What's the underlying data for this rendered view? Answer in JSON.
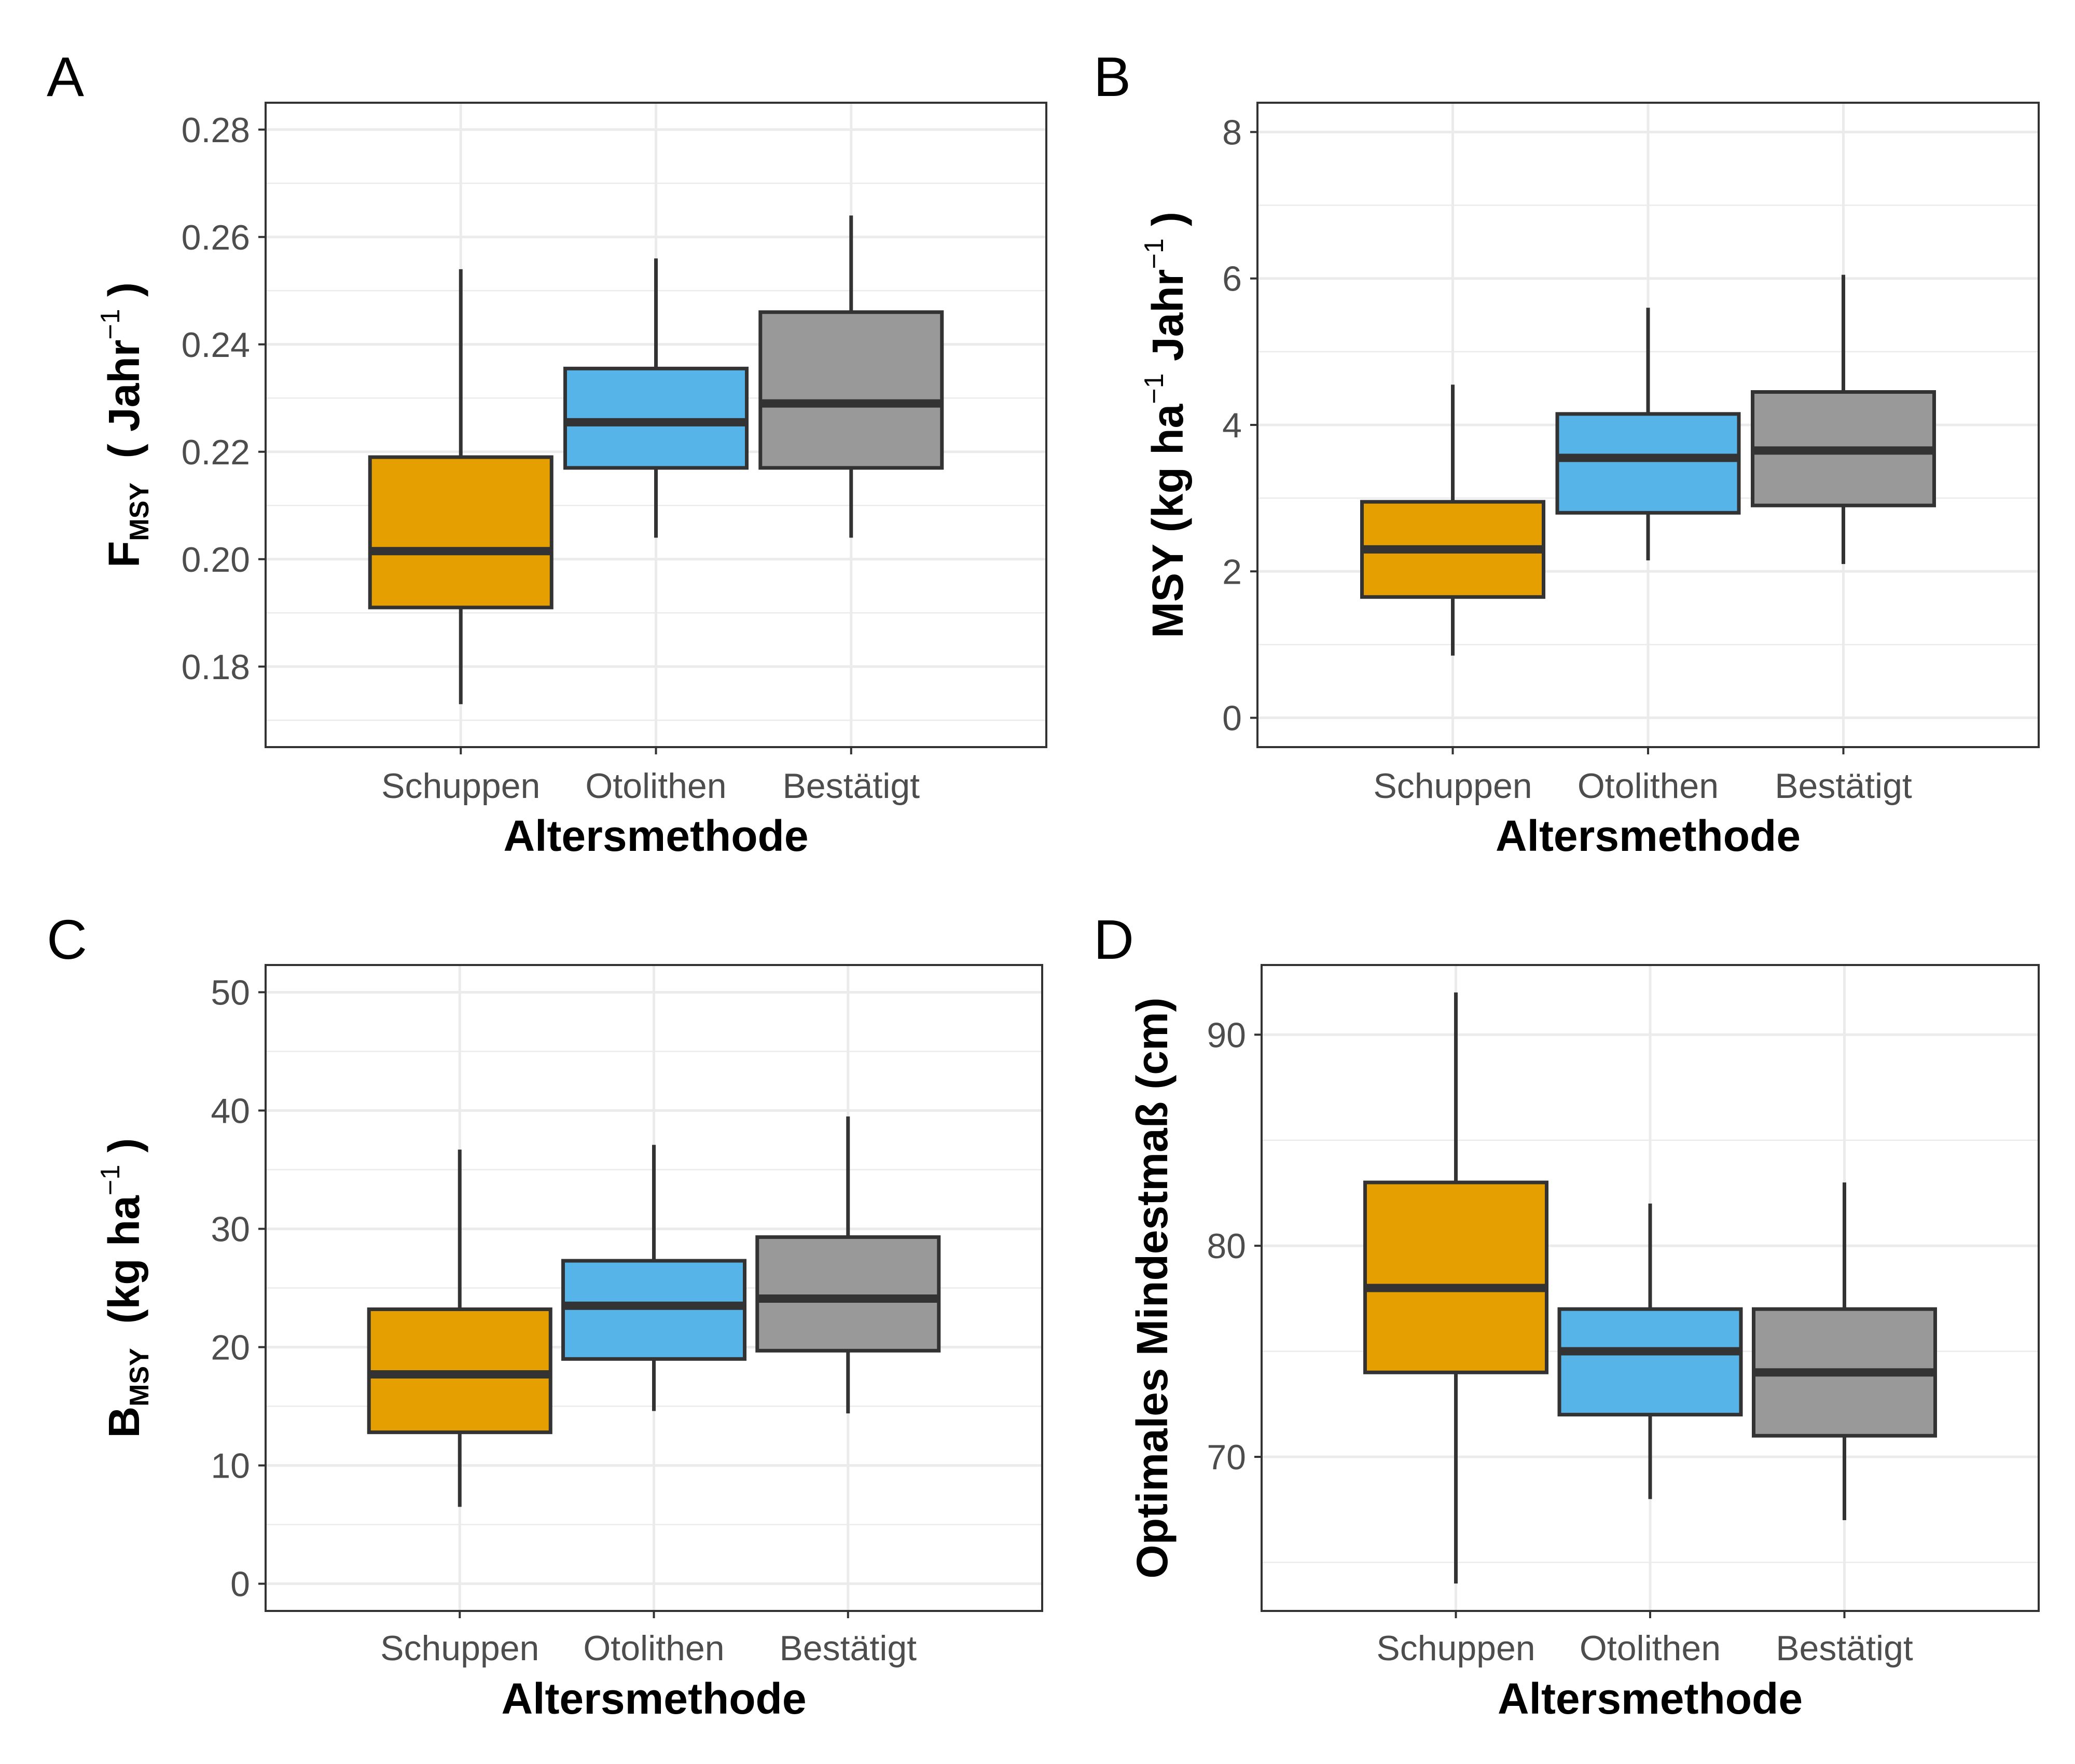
{
  "colors": {
    "Schuppen": "#E69F00",
    "Otolithen": "#56B4E9",
    "Bestätigt": "#999999"
  },
  "chart_data": [
    {
      "type": "box",
      "panel": "A",
      "categories": [
        "Schuppen",
        "Otolithen",
        "Bestätigt"
      ],
      "xlabel": "Altersmethode",
      "ylabel": {
        "main": "F",
        "sub": "MSY",
        "unit_open": "( Jahr",
        "sup": "−1",
        "unit_close": ")"
      },
      "ylim": [
        0.165,
        0.285
      ],
      "yticks": [
        0.18,
        0.2,
        0.22,
        0.24,
        0.26,
        0.28
      ],
      "ytick_labels": [
        "0.18",
        "0.20",
        "0.22",
        "0.24",
        "0.26",
        "0.28"
      ],
      "grid": true,
      "boxes": [
        {
          "category": "Schuppen",
          "whisker_low": 0.173,
          "q1": 0.191,
          "median": 0.2015,
          "q3": 0.219,
          "whisker_high": 0.254
        },
        {
          "category": "Otolithen",
          "whisker_low": 0.204,
          "q1": 0.217,
          "median": 0.2255,
          "q3": 0.2355,
          "whisker_high": 0.256
        },
        {
          "category": "Bestätigt",
          "whisker_low": 0.204,
          "q1": 0.217,
          "median": 0.229,
          "q3": 0.246,
          "whisker_high": 0.264
        }
      ]
    },
    {
      "type": "box",
      "panel": "B",
      "categories": [
        "Schuppen",
        "Otolithen",
        "Bestätigt"
      ],
      "xlabel": "Altersmethode",
      "ylabel": {
        "main": "MSY (kg  ha",
        "sup1": "−1",
        "mid": " Jahr",
        "sup2": "−1",
        "close": ")"
      },
      "ylim": [
        -0.4,
        8.4
      ],
      "yticks": [
        0,
        2,
        4,
        6,
        8
      ],
      "ytick_labels": [
        "0",
        "2",
        "4",
        "6",
        "8"
      ],
      "grid": true,
      "boxes": [
        {
          "category": "Schuppen",
          "whisker_low": 0.85,
          "q1": 1.65,
          "median": 2.3,
          "q3": 2.95,
          "whisker_high": 4.55
        },
        {
          "category": "Otolithen",
          "whisker_low": 2.15,
          "q1": 2.8,
          "median": 3.55,
          "q3": 4.15,
          "whisker_high": 5.6
        },
        {
          "category": "Bestätigt",
          "whisker_low": 2.1,
          "q1": 2.9,
          "median": 3.65,
          "q3": 4.45,
          "whisker_high": 6.05
        }
      ]
    },
    {
      "type": "box",
      "panel": "C",
      "categories": [
        "Schuppen",
        "Otolithen",
        "Bestätigt"
      ],
      "xlabel": "Altersmethode",
      "ylabel": {
        "main": "B",
        "sub": "MSY",
        "unit_open": "(kg ha",
        "sup": "−1",
        "unit_close": ")"
      },
      "ylim": [
        -2.3,
        52.3
      ],
      "yticks": [
        0,
        10,
        20,
        30,
        40,
        50
      ],
      "ytick_labels": [
        "0",
        "10",
        "20",
        "30",
        "40",
        "50"
      ],
      "grid": true,
      "boxes": [
        {
          "category": "Schuppen",
          "whisker_low": 6.5,
          "q1": 12.8,
          "median": 17.7,
          "q3": 23.2,
          "whisker_high": 36.7
        },
        {
          "category": "Otolithen",
          "whisker_low": 14.6,
          "q1": 19.0,
          "median": 23.5,
          "q3": 27.3,
          "whisker_high": 37.1
        },
        {
          "category": "Bestätigt",
          "whisker_low": 14.4,
          "q1": 19.7,
          "median": 24.1,
          "q3": 29.3,
          "whisker_high": 39.5
        }
      ]
    },
    {
      "type": "box",
      "panel": "D",
      "categories": [
        "Schuppen",
        "Otolithen",
        "Bestätigt"
      ],
      "xlabel": "Altersmethode",
      "ylabel": "Optimales Mindestmaß (cm)",
      "ylim": [
        62.7,
        93.3
      ],
      "yticks": [
        70,
        80,
        90
      ],
      "ytick_labels": [
        "70",
        "80",
        "90"
      ],
      "grid": true,
      "boxes": [
        {
          "category": "Schuppen",
          "whisker_low": 64,
          "q1": 74,
          "median": 78,
          "q3": 83,
          "whisker_high": 92
        },
        {
          "category": "Otolithen",
          "whisker_low": 68,
          "q1": 72,
          "median": 75,
          "q3": 77,
          "whisker_high": 82
        },
        {
          "category": "Bestätigt",
          "whisker_low": 67,
          "q1": 71,
          "median": 74,
          "q3": 77,
          "whisker_high": 83
        }
      ]
    }
  ]
}
